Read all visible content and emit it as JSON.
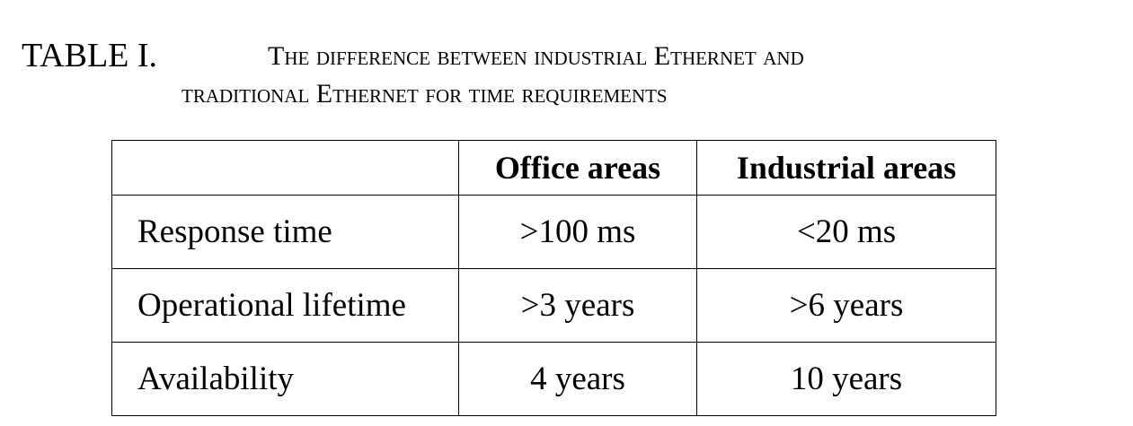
{
  "caption": {
    "label": "TABLE I.",
    "line1": "The difference between industrial Ethernet and",
    "line2": "traditional Ethernet for time requirements"
  },
  "table": {
    "headers": [
      "",
      "Office areas",
      "Industrial areas"
    ],
    "rows": [
      {
        "label": "Response time",
        "office": ">100 ms",
        "industrial": "<20 ms"
      },
      {
        "label": "Operational lifetime",
        "office": ">3 years",
        "industrial": ">6 years"
      },
      {
        "label": "Availability",
        "office": "4 years",
        "industrial": "10 years"
      }
    ]
  }
}
